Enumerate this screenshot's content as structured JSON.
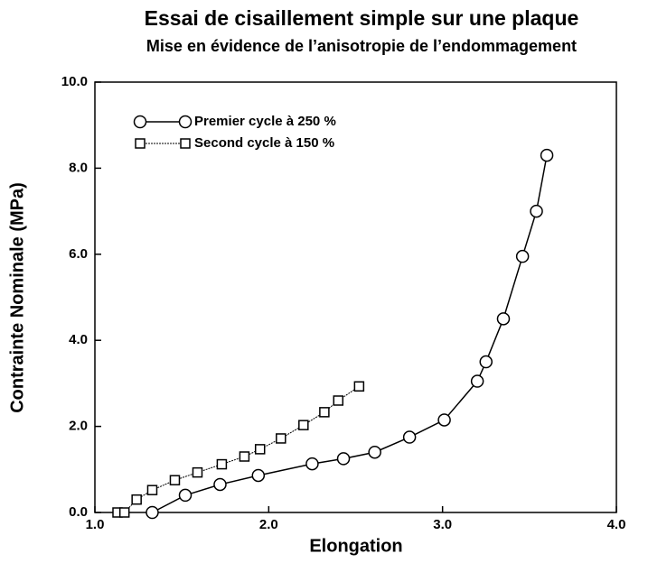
{
  "chart_data": {
    "type": "line",
    "title": "Essai de cisaillement simple sur une plaque",
    "subtitle": "Mise en évidence de l’anisotropie de l’endommagement",
    "xlabel": "Elongation",
    "ylabel": "Contrainte Nominale (MPa)",
    "xlim": [
      1,
      4
    ],
    "ylim": [
      0,
      10
    ],
    "xticks": [
      {
        "value": 1,
        "label": "1.0"
      },
      {
        "value": 2,
        "label": "2.0"
      },
      {
        "value": 3,
        "label": "3.0"
      },
      {
        "value": 4,
        "label": "4.0"
      }
    ],
    "yticks": [
      {
        "value": 0,
        "label": "0.0"
      },
      {
        "value": 2,
        "label": "2.0"
      },
      {
        "value": 4,
        "label": "4.0"
      },
      {
        "value": 6,
        "label": "6.0"
      },
      {
        "value": 8,
        "label": "8.0"
      },
      {
        "value": 10,
        "label": "10.0"
      }
    ],
    "legend": "upper left",
    "series": [
      {
        "name": "Premier cycle à 250 %",
        "color": "#000000",
        "marker": "circle",
        "dash": "solid",
        "x": [
          1.33,
          1.52,
          1.72,
          1.94,
          2.25,
          2.43,
          2.61,
          2.81,
          3.01,
          3.2,
          3.25,
          3.35,
          3.46,
          3.54,
          3.6
        ],
        "values": [
          0.0,
          0.4,
          0.65,
          0.86,
          1.13,
          1.25,
          1.4,
          1.75,
          2.15,
          3.05,
          3.5,
          4.5,
          5.95,
          7.0,
          8.3
        ]
      },
      {
        "name": "Second cycle à 150 %",
        "color": "#000000",
        "marker": "square",
        "dash": "dotted",
        "x": [
          1.13,
          1.17,
          1.24,
          1.33,
          1.46,
          1.59,
          1.73,
          1.86,
          1.95,
          2.07,
          2.2,
          2.32,
          2.4,
          2.52
        ],
        "values": [
          0.0,
          0.0,
          0.3,
          0.52,
          0.75,
          0.93,
          1.12,
          1.3,
          1.47,
          1.72,
          2.03,
          2.33,
          2.6,
          2.93
        ]
      }
    ]
  }
}
